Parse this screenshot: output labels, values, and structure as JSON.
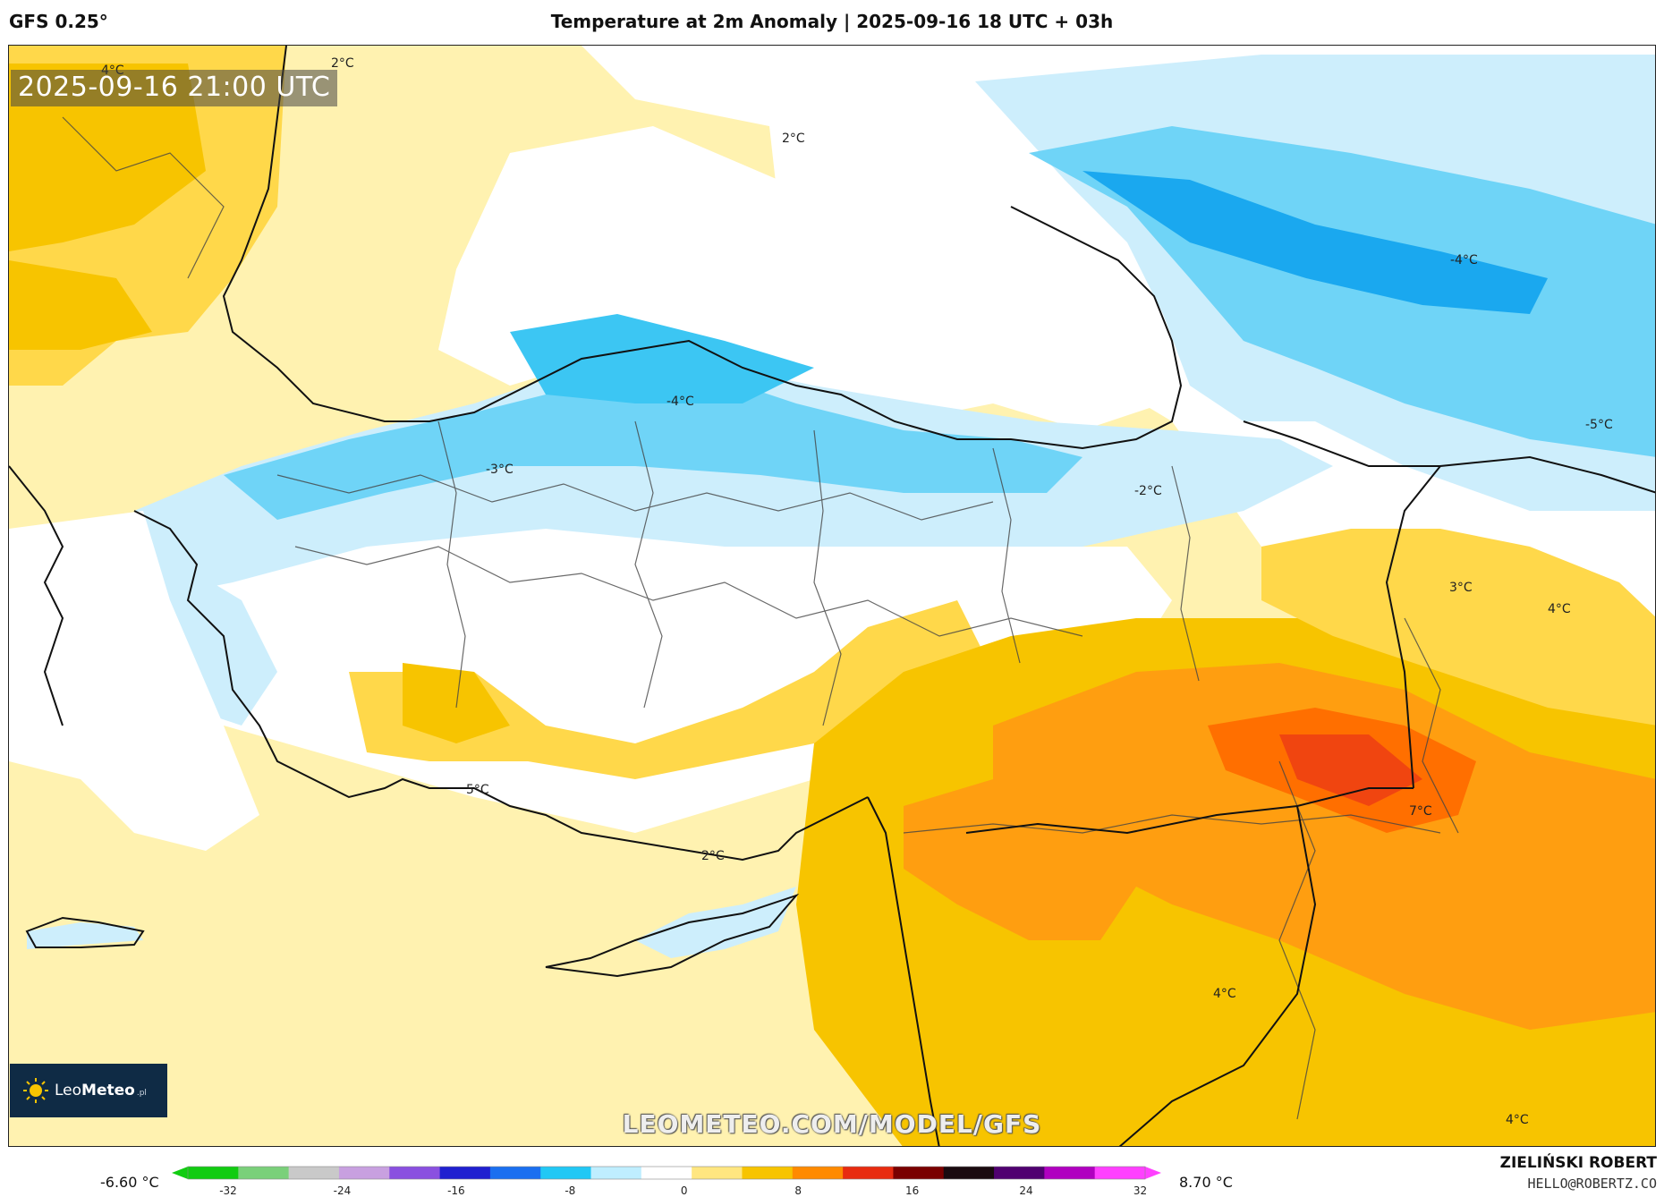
{
  "header": {
    "model": "GFS 0.25°",
    "title": "Temperature at 2m Anomaly | 2025-09-16 18 UTC + 03h"
  },
  "map": {
    "valid_time": "2025-09-16 21:00 UTC",
    "watermark": "LEOMETEO.COM/MODEL/GFS",
    "contour_labels": [
      {
        "text": "4°C"
      },
      {
        "text": "2°C"
      },
      {
        "text": "2°C"
      },
      {
        "text": "-4°C"
      },
      {
        "text": "-4°C"
      },
      {
        "text": "-3°C"
      },
      {
        "text": "-2°C"
      },
      {
        "text": "-5°C"
      },
      {
        "text": "3°C"
      },
      {
        "text": "4°C"
      },
      {
        "text": "5°C"
      },
      {
        "text": "2°C"
      },
      {
        "text": "7°C"
      },
      {
        "text": "4°C"
      },
      {
        "text": "4°C"
      }
    ]
  },
  "logo": {
    "brand_light": "Leo",
    "brand_bold": "Meteo",
    "suffix": ".pl"
  },
  "legend": {
    "min_label": "-6.60 °C",
    "max_label": "8.70 °C",
    "ticks": [
      "-32",
      "-24",
      "-16",
      "-8",
      "0",
      "8",
      "16",
      "24",
      "32"
    ],
    "colors": [
      "#11cc11",
      "#7ad07a",
      "#c9c9c9",
      "#c8a0e0",
      "#8a50e0",
      "#2020d0",
      "#1a6ff0",
      "#21c8f5",
      "#bfeeff",
      "#ffffff",
      "#ffe680",
      "#f7c400",
      "#ff8a00",
      "#e82b10",
      "#7a0000",
      "#1a0a10",
      "#500070",
      "#b000c0",
      "#ff40ff"
    ]
  },
  "credits": {
    "author": "ZIELIŃSKI ROBERT",
    "email": "HELLO@ROBERTZ.CO"
  }
}
